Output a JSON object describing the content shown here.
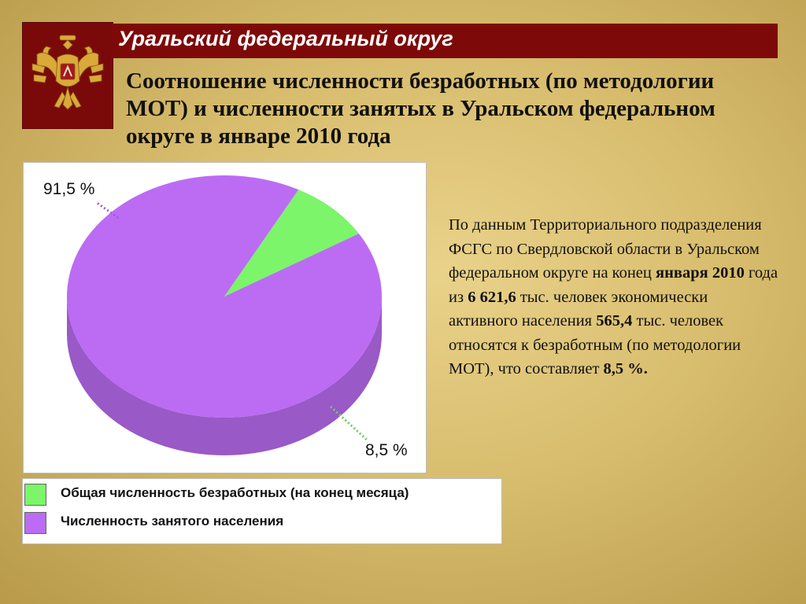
{
  "header": {
    "region_title": "Уральский федеральный округ"
  },
  "slide": {
    "title": "Соотношение численности безработных (по методологии МОТ) и численности занятых в Уральском федеральном округе в январе 2010 года"
  },
  "chart_data": {
    "type": "pie",
    "title": "",
    "slices": [
      {
        "name": "Численность занятого населения",
        "value": 91.5,
        "label": "91,5 %",
        "color": "#bb6cf3"
      },
      {
        "name": "Общая численность безработных (на конец месяца)",
        "value": 8.5,
        "label": "8,5 %",
        "color": "#7cf56a"
      }
    ],
    "legend": {
      "placement": "bottom",
      "items": [
        {
          "label": "Общая численность безработных (на конец месяца)",
          "color": "#7cf56a"
        },
        {
          "label": "Численность занятого населения",
          "color": "#bb6cf3"
        }
      ]
    }
  },
  "info": {
    "parts": [
      {
        "text": "По данным Территориального подразделения ФСГС по Свердловской области в Уральском федеральном округе на конец ",
        "bold": false
      },
      {
        "text": "января 2010",
        "bold": true
      },
      {
        "text": " года из ",
        "bold": false
      },
      {
        "text": "6 621,6",
        "bold": true
      },
      {
        "text": " тыс. человек экономически активного населения ",
        "bold": false
      },
      {
        "text": "565,4",
        "bold": true
      },
      {
        "text": " тыс. человек относятся к безработным (по методологии МОТ), что составляет ",
        "bold": false
      },
      {
        "text": "8,5 %.",
        "bold": true
      }
    ]
  },
  "colors": {
    "header_bg": "#7e0909",
    "emblem_bg": "#7a0a0a",
    "emblem_gold": "#d9a93a"
  }
}
